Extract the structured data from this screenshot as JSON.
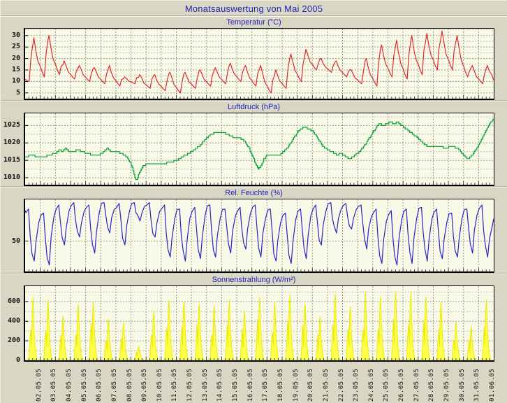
{
  "page": {
    "title": "Monatsauswertung von Mai 2005"
  },
  "x_axis": {
    "labels": [
      "02.05.05",
      "03.05.05",
      "04.05.05",
      "05.05.05",
      "06.05.05",
      "07.05.05",
      "08.05.05",
      "09.05.05",
      "10.05.05",
      "11.05.05",
      "12.05.05",
      "13.05.05",
      "14.05.05",
      "15.05.05",
      "16.05.05",
      "17.05.05",
      "18.05.05",
      "19.05.05",
      "20.05.05",
      "21.05.05",
      "22.05.05",
      "23.05.05",
      "24.05.05",
      "25.05.05",
      "26.05.05",
      "27.05.05",
      "28.05.05",
      "29.05.05",
      "30.05.05",
      "31.05.05",
      "01.06.05"
    ]
  },
  "chart_data": [
    {
      "type": "line",
      "title": "Temperatur (°C)",
      "ylabel": "°C",
      "color": "#e02828",
      "ylim": [
        2.5,
        33
      ],
      "yticks": [
        5,
        10,
        15,
        20,
        25,
        30
      ],
      "minor_step": 2.5,
      "x_range_days": [
        1,
        32
      ],
      "daily_min": [
        10,
        12,
        13,
        11,
        10,
        9,
        8,
        9,
        7,
        6,
        5,
        7,
        8,
        9,
        10,
        8,
        5,
        7,
        10,
        15,
        14,
        12,
        9,
        8,
        12,
        11,
        13,
        15,
        15,
        12,
        9
      ],
      "daily_max": [
        29,
        30,
        19,
        17,
        16,
        17,
        12,
        13,
        13,
        14,
        14,
        15,
        16,
        18,
        17,
        17,
        15,
        22,
        24,
        20,
        19,
        15,
        20,
        26,
        28,
        30,
        31,
        32,
        30,
        17,
        17
      ],
      "end_value": 10.5
    },
    {
      "type": "line",
      "title": "Luftdruck (hPa)",
      "ylabel": "hPa",
      "color": "#00a02c",
      "ylim": [
        1008,
        1028.5
      ],
      "yticks": [
        1010,
        1015,
        1020,
        1025
      ],
      "minor_step": 2.5,
      "x_range_days": [
        1,
        32
      ],
      "points": [
        [
          1.0,
          1016
        ],
        [
          1.4,
          1016.5
        ],
        [
          1.8,
          1016
        ],
        [
          2.2,
          1016
        ],
        [
          2.6,
          1016.5
        ],
        [
          3.0,
          1017
        ],
        [
          3.25,
          1018
        ],
        [
          3.45,
          1017.5
        ],
        [
          3.65,
          1018.5
        ],
        [
          3.9,
          1017.5
        ],
        [
          4.2,
          1017.5
        ],
        [
          4.5,
          1018
        ],
        [
          4.8,
          1017.5
        ],
        [
          5.1,
          1017
        ],
        [
          5.5,
          1016.5
        ],
        [
          5.9,
          1016.5
        ],
        [
          6.2,
          1017.5
        ],
        [
          6.45,
          1018.5
        ],
        [
          6.7,
          1017.5
        ],
        [
          7.0,
          1017.5
        ],
        [
          7.4,
          1017
        ],
        [
          7.7,
          1016
        ],
        [
          8.0,
          1014
        ],
        [
          8.2,
          1011
        ],
        [
          8.35,
          1009
        ],
        [
          8.55,
          1011.5
        ],
        [
          8.8,
          1013.5
        ],
        [
          9.1,
          1014
        ],
        [
          9.6,
          1014
        ],
        [
          10.1,
          1014
        ],
        [
          10.6,
          1014.5
        ],
        [
          11.0,
          1015
        ],
        [
          11.4,
          1016
        ],
        [
          11.8,
          1017
        ],
        [
          12.2,
          1018
        ],
        [
          12.6,
          1019.5
        ],
        [
          13.0,
          1021.5
        ],
        [
          13.3,
          1022.5
        ],
        [
          13.6,
          1023
        ],
        [
          14.0,
          1023
        ],
        [
          14.4,
          1022.5
        ],
        [
          14.8,
          1021.5
        ],
        [
          15.2,
          1021.5
        ],
        [
          15.5,
          1020.5
        ],
        [
          15.8,
          1018.5
        ],
        [
          16.0,
          1016.5
        ],
        [
          16.2,
          1014.5
        ],
        [
          16.4,
          1012.5
        ],
        [
          16.6,
          1013.5
        ],
        [
          16.8,
          1015.5
        ],
        [
          17.0,
          1016.5
        ],
        [
          17.4,
          1016.5
        ],
        [
          17.8,
          1016.5
        ],
        [
          18.1,
          1017.5
        ],
        [
          18.4,
          1019
        ],
        [
          18.7,
          1021
        ],
        [
          19.0,
          1023
        ],
        [
          19.2,
          1024
        ],
        [
          19.5,
          1024.5
        ],
        [
          19.8,
          1024
        ],
        [
          20.1,
          1023
        ],
        [
          20.4,
          1021
        ],
        [
          20.7,
          1019
        ],
        [
          21.0,
          1018
        ],
        [
          21.3,
          1017.5
        ],
        [
          21.6,
          1016.5
        ],
        [
          21.9,
          1017
        ],
        [
          22.2,
          1016
        ],
        [
          22.5,
          1015.5
        ],
        [
          22.8,
          1016.5
        ],
        [
          23.1,
          1017.5
        ],
        [
          23.4,
          1019
        ],
        [
          23.7,
          1021
        ],
        [
          24.0,
          1023
        ],
        [
          24.2,
          1024.5
        ],
        [
          24.45,
          1025.5
        ],
        [
          24.7,
          1025
        ],
        [
          24.9,
          1025.5
        ],
        [
          25.15,
          1026
        ],
        [
          25.4,
          1025.5
        ],
        [
          25.65,
          1026
        ],
        [
          25.9,
          1025
        ],
        [
          26.2,
          1024
        ],
        [
          26.5,
          1023
        ],
        [
          26.8,
          1022
        ],
        [
          27.1,
          1021
        ],
        [
          27.4,
          1019.5
        ],
        [
          27.7,
          1019
        ],
        [
          28.0,
          1019
        ],
        [
          28.4,
          1019
        ],
        [
          28.8,
          1018.5
        ],
        [
          29.2,
          1019
        ],
        [
          29.6,
          1018.5
        ],
        [
          29.9,
          1017
        ],
        [
          30.1,
          1016
        ],
        [
          30.3,
          1015.5
        ],
        [
          30.55,
          1016.5
        ],
        [
          30.8,
          1018
        ],
        [
          31.05,
          1020
        ],
        [
          31.3,
          1022
        ],
        [
          31.55,
          1024
        ],
        [
          31.8,
          1026
        ],
        [
          32.0,
          1027
        ]
      ]
    },
    {
      "type": "line",
      "title": "Rel. Feuchte (%)",
      "ylabel": "%",
      "color": "#2424c8",
      "ylim": [
        12,
        102
      ],
      "yticks": [
        50
      ],
      "minor_step": 0,
      "x_range_days": [
        1,
        32
      ],
      "daily_high": [
        90,
        85,
        95,
        98,
        95,
        98,
        97,
        98,
        98,
        95,
        90,
        92,
        95,
        90,
        92,
        95,
        90,
        85,
        90,
        95,
        98,
        97,
        95,
        90,
        88,
        90,
        92,
        90,
        85,
        90,
        95
      ],
      "daily_low": [
        25,
        20,
        45,
        55,
        35,
        60,
        45,
        75,
        55,
        30,
        25,
        28,
        30,
        35,
        40,
        30,
        25,
        22,
        28,
        45,
        60,
        65,
        40,
        22,
        20,
        22,
        25,
        28,
        30,
        35,
        30
      ],
      "end_value": 78
    },
    {
      "type": "area",
      "title": "Sonnenstrahlung (W/m²)",
      "ylabel": "W/m²",
      "color": "#ffff4d",
      "stroke": "#ebeb00",
      "ylim": [
        0,
        760
      ],
      "yticks": [
        0,
        200,
        400,
        600
      ],
      "minor_step": 100,
      "x_range_days": [
        1,
        32
      ],
      "daily_peak": [
        650,
        620,
        450,
        580,
        600,
        420,
        380,
        150,
        500,
        620,
        600,
        580,
        560,
        620,
        500,
        650,
        600,
        680,
        580,
        450,
        680,
        550,
        700,
        650,
        700,
        700,
        650,
        600,
        400,
        350,
        620
      ]
    }
  ]
}
